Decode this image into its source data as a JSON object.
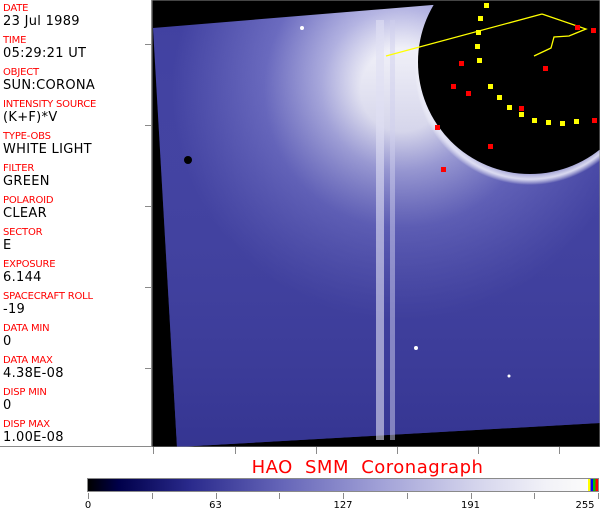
{
  "header_fields": [
    {
      "label": "DATE",
      "value": "23 Jul 1989"
    },
    {
      "label": "TIME",
      "value": "05:29:21 UT"
    },
    {
      "label": "OBJECT",
      "value": "SUN:CORONA"
    },
    {
      "label": "INTENSITY SOURCE",
      "value": "(K+F)*V"
    },
    {
      "label": "TYPE-OBS",
      "value": "WHITE LIGHT"
    },
    {
      "label": "FILTER",
      "value": "GREEN"
    },
    {
      "label": "POLAROID",
      "value": "CLEAR"
    },
    {
      "label": "SECTOR",
      "value": "E"
    },
    {
      "label": "EXPOSURE",
      "value": "6.144"
    },
    {
      "label": "SPACECRAFT ROLL",
      "value": "-19"
    },
    {
      "label": "DATA MIN",
      "value": "0"
    },
    {
      "label": "DATA MAX",
      "value": "4.38E-08"
    },
    {
      "label": "DISP MIN",
      "value": "0"
    },
    {
      "label": "DISP MAX",
      "value": "1.00E-08"
    }
  ],
  "title": "HAO  SMM Coronagraph",
  "colorbar": {
    "ticks": [
      "0",
      "63",
      "127",
      "191",
      "255"
    ],
    "colors": {
      "low": "#000000",
      "mid": "#6565b8",
      "high": "#ffffff"
    }
  },
  "colors": {
    "label": "#ff0000",
    "marker_red": "#ff0000",
    "marker_yellow": "#ffff00",
    "image_blue": "#4a4aa8"
  }
}
